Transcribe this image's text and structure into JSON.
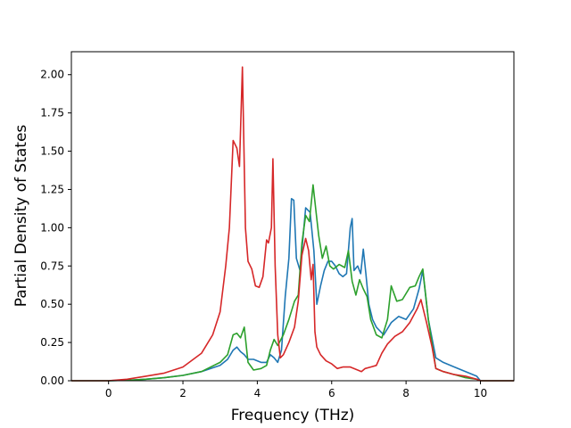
{
  "chart_data": {
    "type": "line",
    "title": "",
    "xlabel": "Frequency (THz)",
    "ylabel": "Partial Density of States",
    "xlim": [
      -1.0,
      10.9
    ],
    "ylim": [
      0.0,
      2.15
    ],
    "xticks": [
      0,
      2,
      4,
      6,
      8,
      10
    ],
    "xtick_labels": [
      "0",
      "2",
      "4",
      "6",
      "8",
      "10"
    ],
    "yticks": [
      0.0,
      0.25,
      0.5,
      0.75,
      1.0,
      1.25,
      1.5,
      1.75,
      2.0
    ],
    "ytick_labels": [
      "0.00",
      "0.25",
      "0.50",
      "0.75",
      "1.00",
      "1.25",
      "1.50",
      "1.75",
      "2.00"
    ],
    "grid": false,
    "legend": false,
    "series": [
      {
        "color": "#1f77b4",
        "x": [
          -1.0,
          0.0,
          0.5,
          1.0,
          1.5,
          2.0,
          2.5,
          3.0,
          3.2,
          3.35,
          3.45,
          3.55,
          3.65,
          3.75,
          3.9,
          4.1,
          4.25,
          4.35,
          4.45,
          4.55,
          4.65,
          4.75,
          4.85,
          4.92,
          4.98,
          5.05,
          5.15,
          5.3,
          5.42,
          5.52,
          5.6,
          5.7,
          5.8,
          5.9,
          6.0,
          6.1,
          6.2,
          6.3,
          6.4,
          6.5,
          6.55,
          6.6,
          6.7,
          6.78,
          6.85,
          6.92,
          7.0,
          7.1,
          7.2,
          7.4,
          7.6,
          7.8,
          8.0,
          8.2,
          8.35,
          8.45,
          8.6,
          8.8,
          9.0,
          9.3,
          9.6,
          9.9,
          10.0,
          10.9
        ],
        "y": [
          0.0,
          0.0,
          0.003,
          0.01,
          0.02,
          0.035,
          0.06,
          0.1,
          0.14,
          0.2,
          0.22,
          0.19,
          0.17,
          0.14,
          0.14,
          0.12,
          0.12,
          0.17,
          0.15,
          0.12,
          0.2,
          0.55,
          0.8,
          1.19,
          1.18,
          0.8,
          0.72,
          1.13,
          1.1,
          0.85,
          0.5,
          0.62,
          0.72,
          0.78,
          0.78,
          0.75,
          0.7,
          0.68,
          0.7,
          1.0,
          1.06,
          0.72,
          0.75,
          0.7,
          0.86,
          0.7,
          0.5,
          0.4,
          0.35,
          0.3,
          0.38,
          0.42,
          0.4,
          0.47,
          0.6,
          0.72,
          0.4,
          0.15,
          0.12,
          0.09,
          0.06,
          0.03,
          0.0,
          0.0
        ]
      },
      {
        "color": "#2ca02c",
        "x": [
          -1.0,
          0.0,
          0.5,
          1.0,
          1.5,
          2.0,
          2.5,
          3.0,
          3.2,
          3.35,
          3.45,
          3.55,
          3.65,
          3.75,
          3.9,
          4.1,
          4.25,
          4.35,
          4.45,
          4.55,
          4.7,
          4.85,
          5.0,
          5.1,
          5.2,
          5.3,
          5.4,
          5.5,
          5.58,
          5.65,
          5.75,
          5.85,
          5.95,
          6.05,
          6.2,
          6.35,
          6.45,
          6.55,
          6.65,
          6.75,
          6.85,
          6.95,
          7.05,
          7.2,
          7.35,
          7.5,
          7.6,
          7.75,
          7.9,
          8.1,
          8.25,
          8.35,
          8.45,
          8.6,
          8.8,
          9.0,
          9.3,
          9.6,
          9.9,
          10.0,
          10.9
        ],
        "y": [
          0.0,
          0.0,
          0.003,
          0.01,
          0.02,
          0.035,
          0.06,
          0.12,
          0.17,
          0.3,
          0.31,
          0.28,
          0.35,
          0.12,
          0.07,
          0.08,
          0.1,
          0.2,
          0.27,
          0.23,
          0.3,
          0.4,
          0.52,
          0.56,
          0.9,
          1.08,
          1.04,
          1.28,
          1.1,
          0.95,
          0.8,
          0.88,
          0.75,
          0.73,
          0.76,
          0.74,
          0.85,
          0.65,
          0.56,
          0.66,
          0.6,
          0.55,
          0.4,
          0.3,
          0.28,
          0.4,
          0.62,
          0.52,
          0.53,
          0.61,
          0.62,
          0.68,
          0.73,
          0.4,
          0.08,
          0.06,
          0.04,
          0.02,
          0.01,
          0.0,
          0.0
        ]
      },
      {
        "color": "#d62728",
        "x": [
          -1.0,
          0.0,
          0.5,
          1.0,
          1.5,
          2.0,
          2.5,
          2.8,
          3.0,
          3.15,
          3.25,
          3.35,
          3.45,
          3.52,
          3.6,
          3.68,
          3.75,
          3.85,
          3.95,
          4.05,
          4.15,
          4.25,
          4.3,
          4.38,
          4.42,
          4.48,
          4.55,
          4.62,
          4.7,
          4.85,
          5.0,
          5.1,
          5.2,
          5.3,
          5.38,
          5.45,
          5.5,
          5.55,
          5.6,
          5.7,
          5.85,
          6.0,
          6.15,
          6.3,
          6.5,
          6.7,
          6.8,
          6.9,
          7.05,
          7.2,
          7.35,
          7.5,
          7.7,
          7.9,
          8.1,
          8.3,
          8.4,
          8.55,
          8.7,
          8.8,
          9.0,
          9.3,
          9.6,
          9.9,
          10.0,
          10.9
        ],
        "y": [
          0.0,
          0.0,
          0.01,
          0.03,
          0.05,
          0.09,
          0.18,
          0.3,
          0.45,
          0.75,
          1.0,
          1.57,
          1.52,
          1.4,
          2.05,
          1.0,
          0.78,
          0.73,
          0.62,
          0.61,
          0.68,
          0.92,
          0.9,
          1.0,
          1.45,
          0.75,
          0.3,
          0.15,
          0.17,
          0.25,
          0.35,
          0.52,
          0.82,
          0.93,
          0.85,
          0.66,
          0.76,
          0.32,
          0.22,
          0.17,
          0.13,
          0.11,
          0.08,
          0.09,
          0.09,
          0.07,
          0.06,
          0.08,
          0.09,
          0.1,
          0.18,
          0.24,
          0.29,
          0.32,
          0.38,
          0.47,
          0.53,
          0.38,
          0.22,
          0.08,
          0.06,
          0.04,
          0.03,
          0.01,
          0.0,
          0.0
        ]
      }
    ]
  }
}
